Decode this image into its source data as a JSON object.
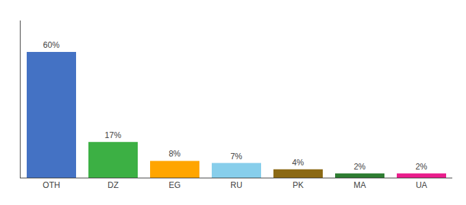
{
  "chart_data": {
    "type": "bar",
    "categories": [
      "OTH",
      "DZ",
      "EG",
      "RU",
      "PK",
      "MA",
      "UA"
    ],
    "values": [
      60,
      17,
      8,
      7,
      4,
      2,
      2
    ],
    "value_labels": [
      "60%",
      "17%",
      "8%",
      "7%",
      "4%",
      "2%",
      "2%"
    ],
    "colors": [
      "#4472C4",
      "#3CB044",
      "#FFA500",
      "#87CEEB",
      "#8B6914",
      "#2E7D32",
      "#E91E8C"
    ],
    "data_labels": true,
    "ylim": [
      0,
      75
    ],
    "yticks": [],
    "tick_labels": "x",
    "grid": false
  }
}
